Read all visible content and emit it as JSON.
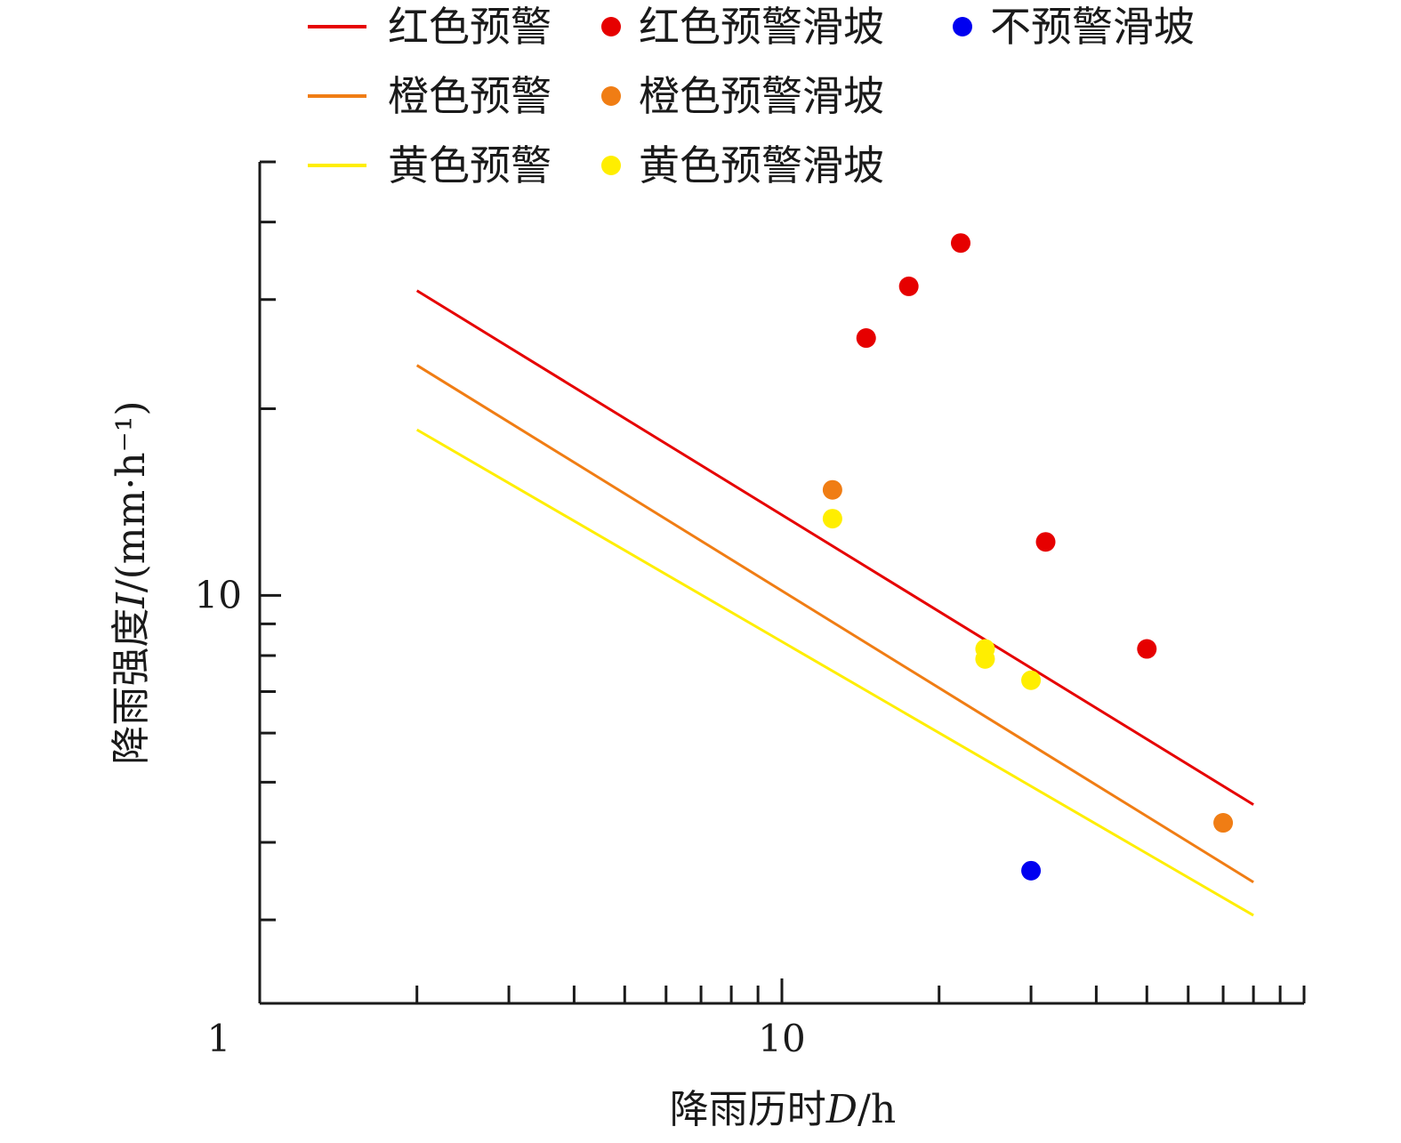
{
  "chart_data": {
    "type": "scatter",
    "xscale": "log",
    "yscale": "log",
    "xlabel": "降雨历时",
    "xlabel_var": "D",
    "xlabel_unit": "/h",
    "ylabel": "降雨强度",
    "ylabel_var": "I",
    "ylabel_unit": "/(mm·h⁻¹)",
    "xlim": [
      1,
      100
    ],
    "ylim": [
      2.2,
      50
    ],
    "x_tick_labels": [
      "1",
      "10"
    ],
    "y_tick_labels": [
      "10"
    ],
    "lines": [
      {
        "name": "红色预警",
        "color": "#e60000",
        "x": [
          2,
          80
        ],
        "y": [
          31,
          4.6
        ]
      },
      {
        "name": "橙色预警",
        "color": "#f07d14",
        "x": [
          2,
          80
        ],
        "y": [
          23.5,
          3.45
        ]
      },
      {
        "name": "黄色预警",
        "color": "#ffee00",
        "x": [
          2,
          80
        ],
        "y": [
          18.5,
          3.05
        ]
      }
    ],
    "points": [
      {
        "name": "红色预警滑坡",
        "color": "#e60000",
        "x": [
          14.5,
          17.5,
          22,
          32,
          50
        ],
        "y": [
          26,
          31.5,
          37,
          12.2,
          8.2
        ]
      },
      {
        "name": "橙色预警滑坡",
        "color": "#f07d14",
        "x": [
          12.5,
          70
        ],
        "y": [
          14.8,
          4.3
        ]
      },
      {
        "name": "黄色预警滑坡",
        "color": "#ffee00",
        "x": [
          12.5,
          24.5,
          24.5,
          30
        ],
        "y": [
          13.3,
          8.2,
          7.9,
          7.3
        ]
      },
      {
        "name": "不预警滑坡",
        "color": "#0000f0",
        "x": [
          30
        ],
        "y": [
          3.6
        ]
      }
    ]
  }
}
